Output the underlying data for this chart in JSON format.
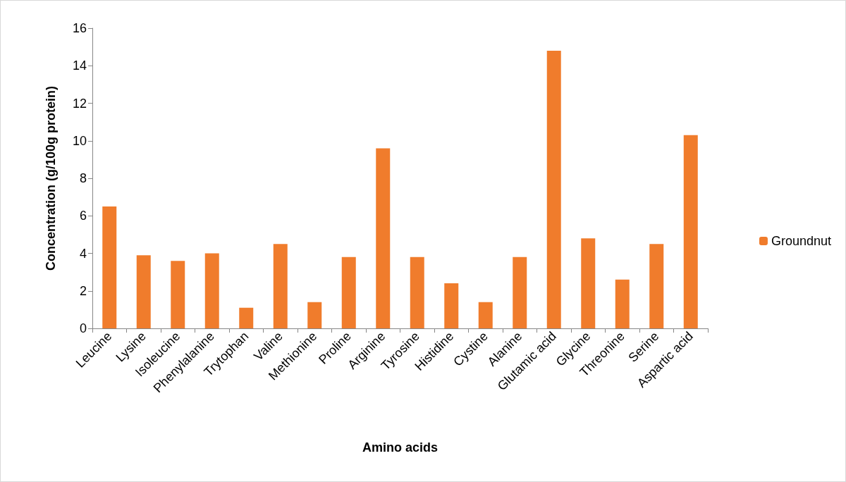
{
  "chart_data": {
    "type": "bar",
    "xlabel": "Amino acids",
    "ylabel": "Concentration (g/100g protein)",
    "categories": [
      "Leucine",
      "Lysine",
      "Isoleucine",
      "Phenylalanine",
      "Trytophan",
      "Valine",
      "Methionine",
      "Proline",
      "Arginine",
      "Tyrosine",
      "Histidine",
      "Cystine",
      "Alanine",
      "Glutamic acid",
      "Glycine",
      "Threonine",
      "Serine",
      "Aspartic acid"
    ],
    "series": [
      {
        "name": "Groundnut",
        "color": "#f07c2c",
        "values": [
          6.5,
          3.9,
          3.6,
          4.0,
          1.1,
          4.5,
          1.4,
          3.8,
          9.6,
          3.8,
          2.4,
          1.4,
          3.8,
          14.8,
          4.8,
          2.6,
          4.5,
          10.3
        ]
      }
    ],
    "ylim": [
      0,
      16
    ],
    "yticks": [
      0,
      2,
      4,
      6,
      8,
      10,
      12,
      14,
      16
    ],
    "grid": false,
    "legend": "right"
  }
}
